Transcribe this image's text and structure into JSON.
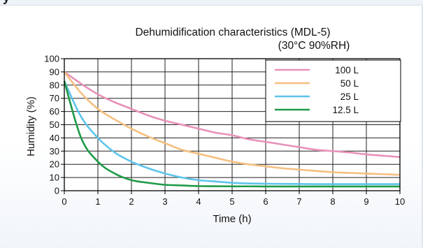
{
  "page": {
    "partial_heading": "y"
  },
  "chart_data": {
    "type": "line",
    "title": "Dehumidification characteristics (MDL-5)",
    "subtitle": "(30°C 90%RH)",
    "xlabel": "Time (h)",
    "ylabel": "Humidity (%)",
    "xlim": [
      0,
      10
    ],
    "ylim": [
      0,
      100
    ],
    "x_ticks": [
      "0",
      "1",
      "2",
      "3",
      "4",
      "5",
      "6",
      "7",
      "8",
      "9",
      "10"
    ],
    "y_ticks": [
      "0",
      "10",
      "20",
      "30",
      "40",
      "50",
      "60",
      "70",
      "80",
      "90",
      "100"
    ],
    "grid": true,
    "legend_position": "top-right",
    "x": [
      0,
      0.5,
      1,
      1.5,
      2,
      2.5,
      3,
      3.5,
      4,
      4.5,
      5,
      5.5,
      6,
      6.5,
      7,
      7.5,
      8,
      8.5,
      9,
      9.5,
      10
    ],
    "series": [
      {
        "name": "100 L",
        "color": "#e891b8",
        "values": [
          90,
          81,
          73,
          67,
          62,
          57,
          53,
          50,
          47,
          44,
          42,
          39,
          37,
          35,
          33,
          31,
          30,
          29,
          27.5,
          26.5,
          25.5
        ]
      },
      {
        "name": "50 L",
        "color": "#f5bf80",
        "values": [
          90,
          74,
          62,
          54,
          47,
          41,
          36,
          31,
          28,
          25,
          22,
          20,
          18.5,
          17,
          16,
          15,
          14,
          13.5,
          13,
          12.5,
          12
        ]
      },
      {
        "name": "25 L",
        "color": "#5ec4ec",
        "values": [
          83,
          56,
          40,
          29,
          22,
          17,
          13,
          10,
          8,
          7,
          6,
          5.5,
          5.3,
          5.2,
          5.1,
          5,
          5,
          5,
          5,
          5,
          5
        ]
      },
      {
        "name": "12.5 L",
        "color": "#1f9a48",
        "values": [
          83,
          40,
          22,
          13,
          8,
          6,
          4.5,
          4,
          3.5,
          3.4,
          3.3,
          3.3,
          3.2,
          3.2,
          3.2,
          3.2,
          3.2,
          3.2,
          3.2,
          3.2,
          3.2
        ]
      }
    ]
  }
}
